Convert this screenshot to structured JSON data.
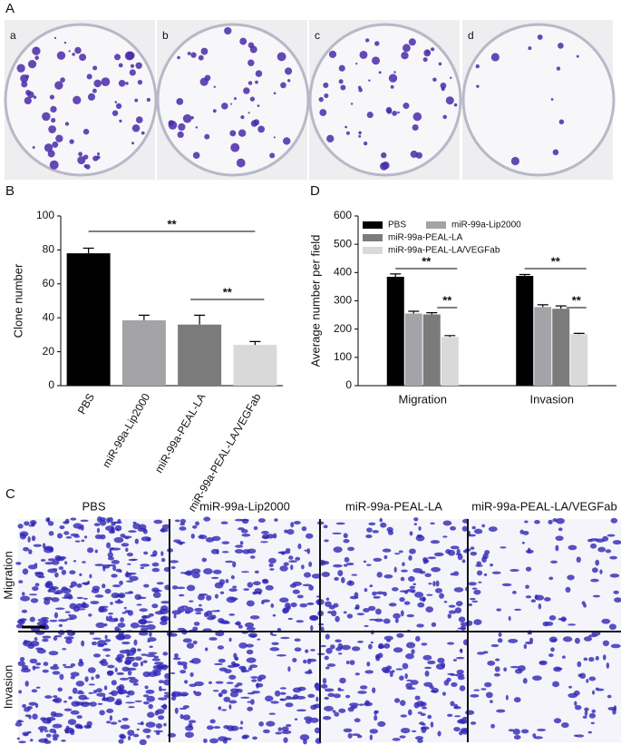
{
  "panels": [
    "A",
    "B",
    "C",
    "D"
  ],
  "plates": [
    "a",
    "b",
    "c",
    "d"
  ],
  "micrographs": {
    "columns": [
      "PBS",
      "miR-99a-Lip2000",
      "miR-99a-PEAL-LA",
      "miR-99a-PEAL-LA/VEGFab"
    ],
    "rows": [
      "Migration",
      "Invasion"
    ]
  },
  "chart_data": [
    {
      "type": "bar",
      "y_label": "Clone number",
      "categories": [
        "PBS",
        "miR-99a-Lip2000",
        "miR-99a-PEAL-LA",
        "miR-99a-PEAL-LA/VEGFab"
      ],
      "values": [
        78,
        38.5,
        36,
        24
      ],
      "errors": [
        3,
        3,
        5.5,
        2
      ],
      "colors": [
        "#000000",
        "#a3a3a8",
        "#7b7b7b",
        "#d9d9d9"
      ],
      "ylim": [
        0,
        100
      ],
      "yticks": [
        0,
        20,
        40,
        60,
        80,
        100
      ],
      "annotations": [
        "**",
        "**"
      ]
    },
    {
      "type": "grouped-bar",
      "y_label": "Average number per field",
      "categories": [
        "Migration",
        "Invasion"
      ],
      "series": [
        {
          "name": "PBS",
          "color": "#000000",
          "values": [
            385,
            388
          ],
          "errors": [
            10,
            5
          ]
        },
        {
          "name": "miR-99a-Lip2000",
          "color": "#a3a3a8",
          "values": [
            255,
            278
          ],
          "errors": [
            8,
            8
          ]
        },
        {
          "name": "miR-99a-PEAL-LA",
          "color": "#7b7b7b",
          "values": [
            252,
            272
          ],
          "errors": [
            6,
            10
          ]
        },
        {
          "name": "miR-99a-PEAL-LA/VEGFab",
          "color": "#d9d9d9",
          "values": [
            172,
            182
          ],
          "errors": [
            5,
            3
          ]
        }
      ],
      "ylim": [
        0,
        600
      ],
      "yticks": [
        0,
        100,
        200,
        300,
        400,
        500,
        600
      ],
      "annotations": [
        "**",
        "**",
        "**",
        "**"
      ]
    }
  ]
}
